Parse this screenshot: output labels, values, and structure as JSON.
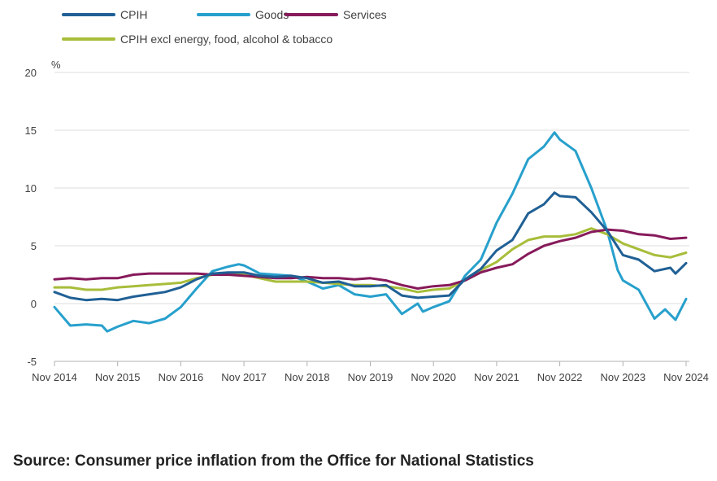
{
  "chart_data": {
    "type": "line",
    "ylabel": "%",
    "ylim": [
      -5,
      20
    ],
    "yticks": [
      "20",
      "15",
      "10",
      "5",
      "0",
      "-5"
    ],
    "ytick_values": [
      20,
      15,
      10,
      5,
      0,
      -5
    ],
    "x_tick_labels": [
      "Nov 2014",
      "Nov 2015",
      "Nov 2016",
      "Nov 2017",
      "Nov 2018",
      "Nov 2019",
      "Nov 2020",
      "Nov 2021",
      "Nov 2022",
      "Nov 2023",
      "Nov 2024"
    ],
    "x_start": "Nov 2014",
    "x_end": "Nov 2024",
    "legend_position": "top-left",
    "grid": true,
    "series": [
      {
        "name": "CPIH",
        "color": "#206095",
        "points": [
          [
            "Nov 2014",
            1.0
          ],
          [
            "Feb 2015",
            0.5
          ],
          [
            "May 2015",
            0.3
          ],
          [
            "Aug 2015",
            0.4
          ],
          [
            "Nov 2015",
            0.3
          ],
          [
            "Feb 2016",
            0.6
          ],
          [
            "May 2016",
            0.8
          ],
          [
            "Aug 2016",
            1.0
          ],
          [
            "Nov 2016",
            1.4
          ],
          [
            "Feb 2017",
            2.1
          ],
          [
            "May 2017",
            2.6
          ],
          [
            "Aug 2017",
            2.7
          ],
          [
            "Nov 2017",
            2.7
          ],
          [
            "Feb 2018",
            2.4
          ],
          [
            "May 2018",
            2.3
          ],
          [
            "Aug 2018",
            2.4
          ],
          [
            "Nov 2018",
            2.2
          ],
          [
            "Feb 2019",
            1.8
          ],
          [
            "May 2019",
            1.9
          ],
          [
            "Aug 2019",
            1.5
          ],
          [
            "Nov 2019",
            1.5
          ],
          [
            "Feb 2020",
            1.6
          ],
          [
            "May 2020",
            0.7
          ],
          [
            "Aug 2020",
            0.5
          ],
          [
            "Nov 2020",
            0.6
          ],
          [
            "Feb 2021",
            0.7
          ],
          [
            "May 2021",
            2.1
          ],
          [
            "Aug 2021",
            3.0
          ],
          [
            "Nov 2021",
            4.6
          ],
          [
            "Feb 2022",
            5.5
          ],
          [
            "May 2022",
            7.8
          ],
          [
            "Aug 2022",
            8.6
          ],
          [
            "Oct 2022",
            9.6
          ],
          [
            "Nov 2022",
            9.3
          ],
          [
            "Feb 2023",
            9.2
          ],
          [
            "May 2023",
            7.9
          ],
          [
            "Aug 2023",
            6.3
          ],
          [
            "Nov 2023",
            4.2
          ],
          [
            "Feb 2024",
            3.8
          ],
          [
            "May 2024",
            2.8
          ],
          [
            "Aug 2024",
            3.1
          ],
          [
            "Sep 2024",
            2.6
          ],
          [
            "Nov 2024",
            3.5
          ]
        ]
      },
      {
        "name": "Goods",
        "color": "#27a0cc",
        "points": [
          [
            "Nov 2014",
            -0.3
          ],
          [
            "Feb 2015",
            -1.9
          ],
          [
            "May 2015",
            -1.8
          ],
          [
            "Aug 2015",
            -1.9
          ],
          [
            "Sep 2015",
            -2.4
          ],
          [
            "Nov 2015",
            -2.0
          ],
          [
            "Feb 2016",
            -1.5
          ],
          [
            "May 2016",
            -1.7
          ],
          [
            "Aug 2016",
            -1.3
          ],
          [
            "Nov 2016",
            -0.3
          ],
          [
            "Feb 2017",
            1.3
          ],
          [
            "May 2017",
            2.8
          ],
          [
            "Aug 2017",
            3.2
          ],
          [
            "Oct 2017",
            3.4
          ],
          [
            "Nov 2017",
            3.3
          ],
          [
            "Feb 2018",
            2.6
          ],
          [
            "May 2018",
            2.5
          ],
          [
            "Aug 2018",
            2.4
          ],
          [
            "Nov 2018",
            1.9
          ],
          [
            "Feb 2019",
            1.3
          ],
          [
            "May 2019",
            1.6
          ],
          [
            "Aug 2019",
            0.8
          ],
          [
            "Nov 2019",
            0.6
          ],
          [
            "Feb 2020",
            0.8
          ],
          [
            "May 2020",
            -0.9
          ],
          [
            "Aug 2020",
            0.0
          ],
          [
            "Sep 2020",
            -0.7
          ],
          [
            "Nov 2020",
            -0.3
          ],
          [
            "Feb 2021",
            0.2
          ],
          [
            "May 2021",
            2.4
          ],
          [
            "Aug 2021",
            3.8
          ],
          [
            "Nov 2021",
            7.0
          ],
          [
            "Feb 2022",
            9.5
          ],
          [
            "May 2022",
            12.5
          ],
          [
            "Aug 2022",
            13.6
          ],
          [
            "Oct 2022",
            14.8
          ],
          [
            "Nov 2022",
            14.2
          ],
          [
            "Feb 2023",
            13.2
          ],
          [
            "May 2023",
            10.0
          ],
          [
            "Aug 2023",
            6.3
          ],
          [
            "Oct 2023",
            2.9
          ],
          [
            "Nov 2023",
            2.0
          ],
          [
            "Feb 2024",
            1.2
          ],
          [
            "May 2024",
            -1.3
          ],
          [
            "Jul 2024",
            -0.5
          ],
          [
            "Sep 2024",
            -1.4
          ],
          [
            "Nov 2024",
            0.4
          ]
        ]
      },
      {
        "name": "Services",
        "color": "#871a5b",
        "points": [
          [
            "Nov 2014",
            2.1
          ],
          [
            "Feb 2015",
            2.2
          ],
          [
            "May 2015",
            2.1
          ],
          [
            "Aug 2015",
            2.2
          ],
          [
            "Nov 2015",
            2.2
          ],
          [
            "Feb 2016",
            2.5
          ],
          [
            "May 2016",
            2.6
          ],
          [
            "Aug 2016",
            2.6
          ],
          [
            "Nov 2016",
            2.6
          ],
          [
            "Feb 2017",
            2.6
          ],
          [
            "May 2017",
            2.5
          ],
          [
            "Aug 2017",
            2.5
          ],
          [
            "Nov 2017",
            2.4
          ],
          [
            "Feb 2018",
            2.3
          ],
          [
            "May 2018",
            2.2
          ],
          [
            "Aug 2018",
            2.2
          ],
          [
            "Nov 2018",
            2.3
          ],
          [
            "Feb 2019",
            2.2
          ],
          [
            "May 2019",
            2.2
          ],
          [
            "Aug 2019",
            2.1
          ],
          [
            "Nov 2019",
            2.2
          ],
          [
            "Feb 2020",
            2.0
          ],
          [
            "May 2020",
            1.6
          ],
          [
            "Aug 2020",
            1.3
          ],
          [
            "Nov 2020",
            1.5
          ],
          [
            "Feb 2021",
            1.6
          ],
          [
            "May 2021",
            2.0
          ],
          [
            "Aug 2021",
            2.7
          ],
          [
            "Nov 2021",
            3.1
          ],
          [
            "Feb 2022",
            3.4
          ],
          [
            "May 2022",
            4.3
          ],
          [
            "Aug 2022",
            5.0
          ],
          [
            "Nov 2022",
            5.4
          ],
          [
            "Feb 2023",
            5.7
          ],
          [
            "May 2023",
            6.2
          ],
          [
            "Aug 2023",
            6.4
          ],
          [
            "Nov 2023",
            6.3
          ],
          [
            "Feb 2024",
            6.0
          ],
          [
            "May 2024",
            5.9
          ],
          [
            "Aug 2024",
            5.6
          ],
          [
            "Nov 2024",
            5.7
          ]
        ]
      },
      {
        "name": "CPIH excl energy, food, alcohol & tobacco",
        "color": "#a8bd3a",
        "points": [
          [
            "Nov 2014",
            1.4
          ],
          [
            "Feb 2015",
            1.4
          ],
          [
            "May 2015",
            1.2
          ],
          [
            "Aug 2015",
            1.2
          ],
          [
            "Nov 2015",
            1.4
          ],
          [
            "Feb 2016",
            1.5
          ],
          [
            "May 2016",
            1.6
          ],
          [
            "Aug 2016",
            1.7
          ],
          [
            "Nov 2016",
            1.8
          ],
          [
            "Feb 2017",
            2.2
          ],
          [
            "May 2017",
            2.5
          ],
          [
            "Aug 2017",
            2.6
          ],
          [
            "Nov 2017",
            2.5
          ],
          [
            "Feb 2018",
            2.2
          ],
          [
            "May 2018",
            1.9
          ],
          [
            "Aug 2018",
            1.9
          ],
          [
            "Nov 2018",
            1.9
          ],
          [
            "Feb 2019",
            1.8
          ],
          [
            "May 2019",
            1.7
          ],
          [
            "Aug 2019",
            1.6
          ],
          [
            "Nov 2019",
            1.6
          ],
          [
            "Feb 2020",
            1.5
          ],
          [
            "May 2020",
            1.3
          ],
          [
            "Aug 2020",
            1.0
          ],
          [
            "Nov 2020",
            1.2
          ],
          [
            "Feb 2021",
            1.3
          ],
          [
            "May 2021",
            2.0
          ],
          [
            "Aug 2021",
            2.9
          ],
          [
            "Nov 2021",
            3.6
          ],
          [
            "Feb 2022",
            4.7
          ],
          [
            "May 2022",
            5.5
          ],
          [
            "Aug 2022",
            5.8
          ],
          [
            "Nov 2022",
            5.8
          ],
          [
            "Feb 2023",
            6.0
          ],
          [
            "May 2023",
            6.5
          ],
          [
            "Aug 2023",
            6.0
          ],
          [
            "Nov 2023",
            5.2
          ],
          [
            "Feb 2024",
            4.7
          ],
          [
            "May 2024",
            4.2
          ],
          [
            "Aug 2024",
            4.0
          ],
          [
            "Nov 2024",
            4.4
          ]
        ]
      }
    ]
  },
  "source": {
    "text": "Source: Consumer price inflation from the Office for National Statistics"
  }
}
